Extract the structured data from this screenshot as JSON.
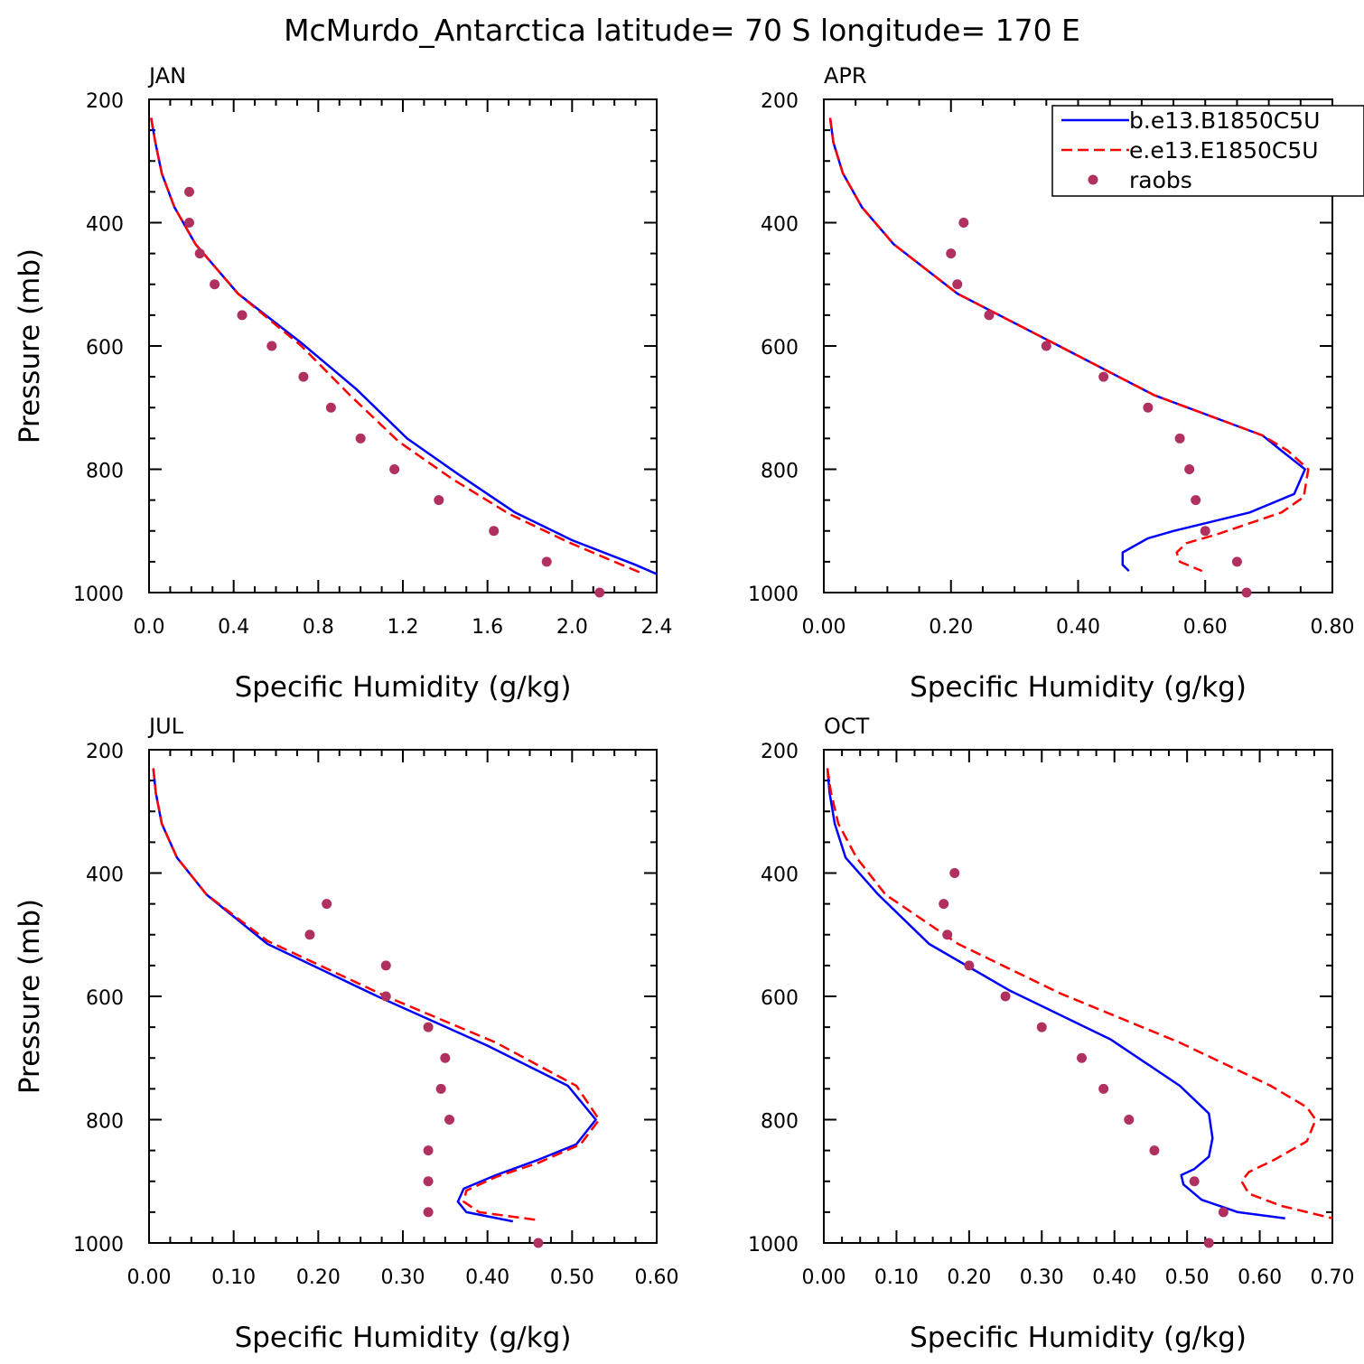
{
  "title": "McMurdo_Antarctica  latitude= 70 S longitude= 170 E",
  "legend": [
    {
      "label": "b.e13.B1850C5U",
      "color": "#0000ff",
      "style": "solid"
    },
    {
      "label": "e.e13.E1850C5U",
      "color": "#ff0000",
      "style": "dashed"
    },
    {
      "label": "raobs",
      "color": "#b03060",
      "style": "marker"
    }
  ],
  "chart_data": [
    {
      "type": "line",
      "panel": "JAN",
      "xlabel": "Specific Humidity (g/kg)",
      "ylabel": "Pressure (mb)",
      "xlim": [
        0,
        2.4
      ],
      "ylim": [
        200,
        1000
      ],
      "y_inverted": true,
      "xticks": [
        "0.0",
        "0.4",
        "0.8",
        "1.2",
        "1.6",
        "2.0",
        "2.4"
      ],
      "yticks": [
        "200",
        "400",
        "600",
        "800",
        "1000"
      ],
      "series": [
        {
          "name": "b.e13.B1850C5U",
          "x": [
            0.01,
            0.03,
            0.06,
            0.12,
            0.22,
            0.42,
            0.72,
            0.98,
            1.22,
            1.47,
            1.73,
            2.0,
            2.3,
            2.4
          ],
          "y": [
            230,
            270,
            320,
            375,
            435,
            515,
            595,
            670,
            750,
            810,
            870,
            915,
            955,
            970
          ]
        },
        {
          "name": "e.e13.E1850C5U",
          "x": [
            0.01,
            0.03,
            0.06,
            0.12,
            0.22,
            0.42,
            0.72,
            0.95,
            1.18,
            1.43,
            1.7,
            1.98,
            2.2,
            2.34
          ],
          "y": [
            230,
            270,
            320,
            375,
            435,
            515,
            600,
            680,
            755,
            815,
            872,
            918,
            950,
            970
          ]
        },
        {
          "name": "raobs",
          "x": [
            0.19,
            0.19,
            0.24,
            0.31,
            0.44,
            0.58,
            0.73,
            0.86,
            1.0,
            1.16,
            1.37,
            1.63,
            1.88,
            2.13
          ],
          "y": [
            350,
            400,
            450,
            500,
            550,
            600,
            650,
            700,
            750,
            800,
            850,
            900,
            950,
            1000
          ]
        }
      ]
    },
    {
      "type": "line",
      "panel": "APR",
      "xlabel": "Specific Humidity (g/kg)",
      "ylabel": "",
      "xlim": [
        0,
        0.8
      ],
      "ylim": [
        200,
        1000
      ],
      "y_inverted": true,
      "xticks": [
        "0.00",
        "0.20",
        "0.40",
        "0.60",
        "0.80"
      ],
      "yticks": [
        "200",
        "400",
        "600",
        "800",
        "1000"
      ],
      "series": [
        {
          "name": "b.e13.B1850C5U",
          "x": [
            0.01,
            0.015,
            0.03,
            0.06,
            0.11,
            0.21,
            0.37,
            0.52,
            0.69,
            0.72,
            0.757,
            0.74,
            0.67,
            0.55,
            0.51,
            0.47,
            0.47,
            0.48
          ],
          "y": [
            230,
            270,
            320,
            375,
            435,
            515,
            600,
            680,
            745,
            770,
            800,
            840,
            870,
            900,
            912,
            935,
            955,
            965
          ]
        },
        {
          "name": "e.e13.E1850C5U",
          "x": [
            0.01,
            0.015,
            0.03,
            0.06,
            0.11,
            0.21,
            0.37,
            0.52,
            0.69,
            0.73,
            0.762,
            0.755,
            0.72,
            0.62,
            0.57,
            0.555,
            0.56,
            0.595
          ],
          "y": [
            230,
            270,
            320,
            375,
            435,
            515,
            600,
            680,
            745,
            770,
            800,
            845,
            870,
            905,
            920,
            935,
            950,
            965
          ]
        },
        {
          "name": "raobs",
          "x": [
            0.22,
            0.2,
            0.21,
            0.26,
            0.35,
            0.44,
            0.51,
            0.56,
            0.575,
            0.585,
            0.6,
            0.65,
            0.665
          ],
          "y": [
            400,
            450,
            500,
            550,
            600,
            650,
            700,
            750,
            800,
            850,
            900,
            950,
            1000
          ]
        }
      ]
    },
    {
      "type": "line",
      "panel": "JUL",
      "xlabel": "Specific Humidity (g/kg)",
      "ylabel": "Pressure (mb)",
      "xlim": [
        0,
        0.6
      ],
      "ylim": [
        200,
        1000
      ],
      "y_inverted": true,
      "xticks": [
        "0.00",
        "0.10",
        "0.20",
        "0.30",
        "0.40",
        "0.50",
        "0.60"
      ],
      "yticks": [
        "200",
        "400",
        "600",
        "800",
        "1000"
      ],
      "series": [
        {
          "name": "b.e13.B1850C5U",
          "x": [
            0.005,
            0.008,
            0.015,
            0.033,
            0.068,
            0.14,
            0.27,
            0.4,
            0.495,
            0.528,
            0.505,
            0.46,
            0.41,
            0.372,
            0.365,
            0.375,
            0.43
          ],
          "y": [
            230,
            270,
            320,
            375,
            435,
            515,
            600,
            680,
            745,
            800,
            840,
            865,
            890,
            912,
            933,
            950,
            965
          ]
        },
        {
          "name": "e.e13.E1850C5U",
          "x": [
            0.005,
            0.008,
            0.015,
            0.033,
            0.068,
            0.14,
            0.28,
            0.41,
            0.505,
            0.532,
            0.51,
            0.46,
            0.41,
            0.375,
            0.372,
            0.39,
            0.46
          ],
          "y": [
            230,
            270,
            320,
            375,
            435,
            510,
            600,
            675,
            745,
            800,
            840,
            870,
            893,
            915,
            933,
            950,
            963
          ]
        },
        {
          "name": "raobs",
          "x": [
            0.21,
            0.19,
            0.28,
            0.28,
            0.33,
            0.35,
            0.345,
            0.355,
            0.33,
            0.33,
            0.33,
            0.46
          ],
          "y": [
            450,
            500,
            550,
            600,
            650,
            700,
            750,
            800,
            850,
            900,
            950,
            1000
          ]
        }
      ]
    },
    {
      "type": "line",
      "panel": "OCT",
      "xlabel": "Specific Humidity (g/kg)",
      "ylabel": "",
      "xlim": [
        0,
        0.7
      ],
      "ylim": [
        200,
        1000
      ],
      "y_inverted": true,
      "xticks": [
        "0.00",
        "0.10",
        "0.20",
        "0.30",
        "0.40",
        "0.50",
        "0.60",
        "0.70"
      ],
      "yticks": [
        "200",
        "400",
        "600",
        "800",
        "1000"
      ],
      "series": [
        {
          "name": "b.e13.B1850C5U",
          "x": [
            0.005,
            0.008,
            0.015,
            0.03,
            0.075,
            0.145,
            0.255,
            0.395,
            0.49,
            0.53,
            0.535,
            0.53,
            0.51,
            0.492,
            0.495,
            0.52,
            0.57,
            0.635
          ],
          "y": [
            230,
            270,
            320,
            375,
            435,
            515,
            590,
            670,
            745,
            790,
            830,
            860,
            880,
            890,
            905,
            930,
            950,
            960
          ]
        },
        {
          "name": "e.e13.E1850C5U",
          "x": [
            0.005,
            0.01,
            0.02,
            0.045,
            0.085,
            0.185,
            0.325,
            0.49,
            0.615,
            0.665,
            0.677,
            0.665,
            0.62,
            0.585,
            0.575,
            0.585,
            0.63,
            0.7
          ],
          "y": [
            230,
            270,
            320,
            375,
            435,
            515,
            595,
            675,
            745,
            780,
            800,
            835,
            865,
            885,
            900,
            920,
            940,
            960
          ]
        },
        {
          "name": "raobs",
          "x": [
            0.18,
            0.165,
            0.17,
            0.2,
            0.25,
            0.3,
            0.355,
            0.385,
            0.42,
            0.455,
            0.51,
            0.55,
            0.53
          ],
          "y": [
            400,
            450,
            500,
            550,
            600,
            650,
            700,
            750,
            800,
            850,
            900,
            950,
            1000
          ]
        }
      ]
    }
  ]
}
